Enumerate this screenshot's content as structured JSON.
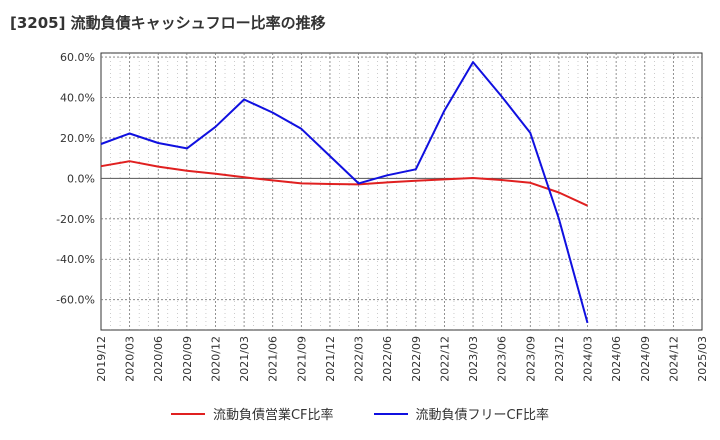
{
  "chart_data": {
    "type": "line",
    "title": "[3205]  流動負債キャッシュフロー比率の推移",
    "xlabel": "",
    "ylabel": "",
    "ylim": [
      -75,
      62
    ],
    "yticks": [
      -60,
      -40,
      -20,
      0,
      20,
      40,
      60
    ],
    "ytick_labels": [
      "-60.0%",
      "-40.0%",
      "-20.0%",
      "0.0%",
      "20.0%",
      "40.0%",
      "60.0%"
    ],
    "x": [
      "2019/12",
      "2020/03",
      "2020/06",
      "2020/09",
      "2020/12",
      "2021/03",
      "2021/06",
      "2021/09",
      "2021/12",
      "2022/03",
      "2022/06",
      "2022/09",
      "2022/12",
      "2023/03",
      "2023/06",
      "2023/09",
      "2023/12",
      "2024/03",
      "2024/06",
      "2024/09",
      "2024/12",
      "2025/03"
    ],
    "grid": true,
    "legend_position": "bottom",
    "series": [
      {
        "name": "流動負債営業CF比率",
        "color": "#e02020",
        "values": [
          6.0,
          8.5,
          5.8,
          3.8,
          2.3,
          0.5,
          -1.0,
          -2.5,
          -2.8,
          -3.0,
          -2.0,
          -1.2,
          -0.5,
          0.2,
          -0.8,
          -2.2,
          -7.0,
          -13.5,
          null,
          null,
          null,
          null
        ]
      },
      {
        "name": "流動負債フリーCF比率",
        "color": "#1010e0",
        "values": [
          17.0,
          22.2,
          17.5,
          14.8,
          25.5,
          39.0,
          32.5,
          24.5,
          11.0,
          -2.5,
          1.5,
          4.5,
          33.5,
          57.5,
          40.5,
          22.5,
          -20.0,
          -71.5,
          null,
          null,
          null,
          null
        ]
      }
    ]
  }
}
